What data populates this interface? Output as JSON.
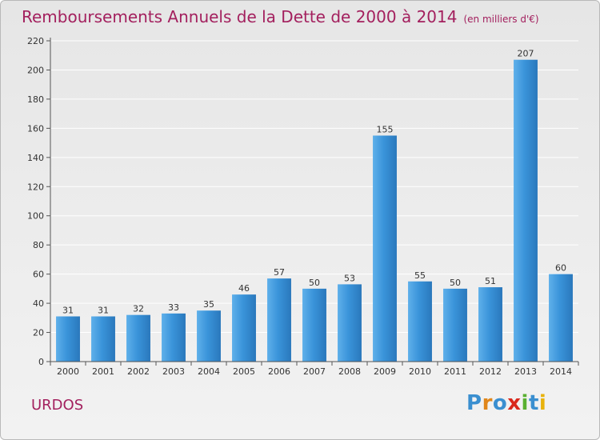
{
  "title": "Remboursements Annuels de la Dette de 2000 à 2014",
  "subtitle": "(en milliers d'€)",
  "commune": "URDOS",
  "logo": {
    "letters": [
      "P",
      "r",
      "o",
      "x",
      "i",
      "t",
      "i"
    ],
    "colors": [
      "#3a8fd0",
      "#e0861a",
      "#3a8fd0",
      "#d9281c",
      "#5ab031",
      "#3a8fd0",
      "#e8b20c"
    ]
  },
  "colors": {
    "bar": "#3a94da",
    "bar_light": "#5fb0ea",
    "bar_dark": "#2a78bc",
    "title": "#a3205e"
  },
  "chart_data": {
    "type": "bar",
    "categories": [
      "2000",
      "2001",
      "2002",
      "2003",
      "2004",
      "2005",
      "2006",
      "2007",
      "2008",
      "2009",
      "2010",
      "2011",
      "2012",
      "2013",
      "2014"
    ],
    "values": [
      31,
      31,
      32,
      33,
      35,
      46,
      57,
      50,
      53,
      155,
      55,
      50,
      51,
      207,
      60
    ],
    "ylim": [
      0,
      220
    ],
    "yticks": [
      0,
      20,
      40,
      60,
      80,
      100,
      120,
      140,
      160,
      180,
      200,
      220
    ],
    "grid": true
  }
}
